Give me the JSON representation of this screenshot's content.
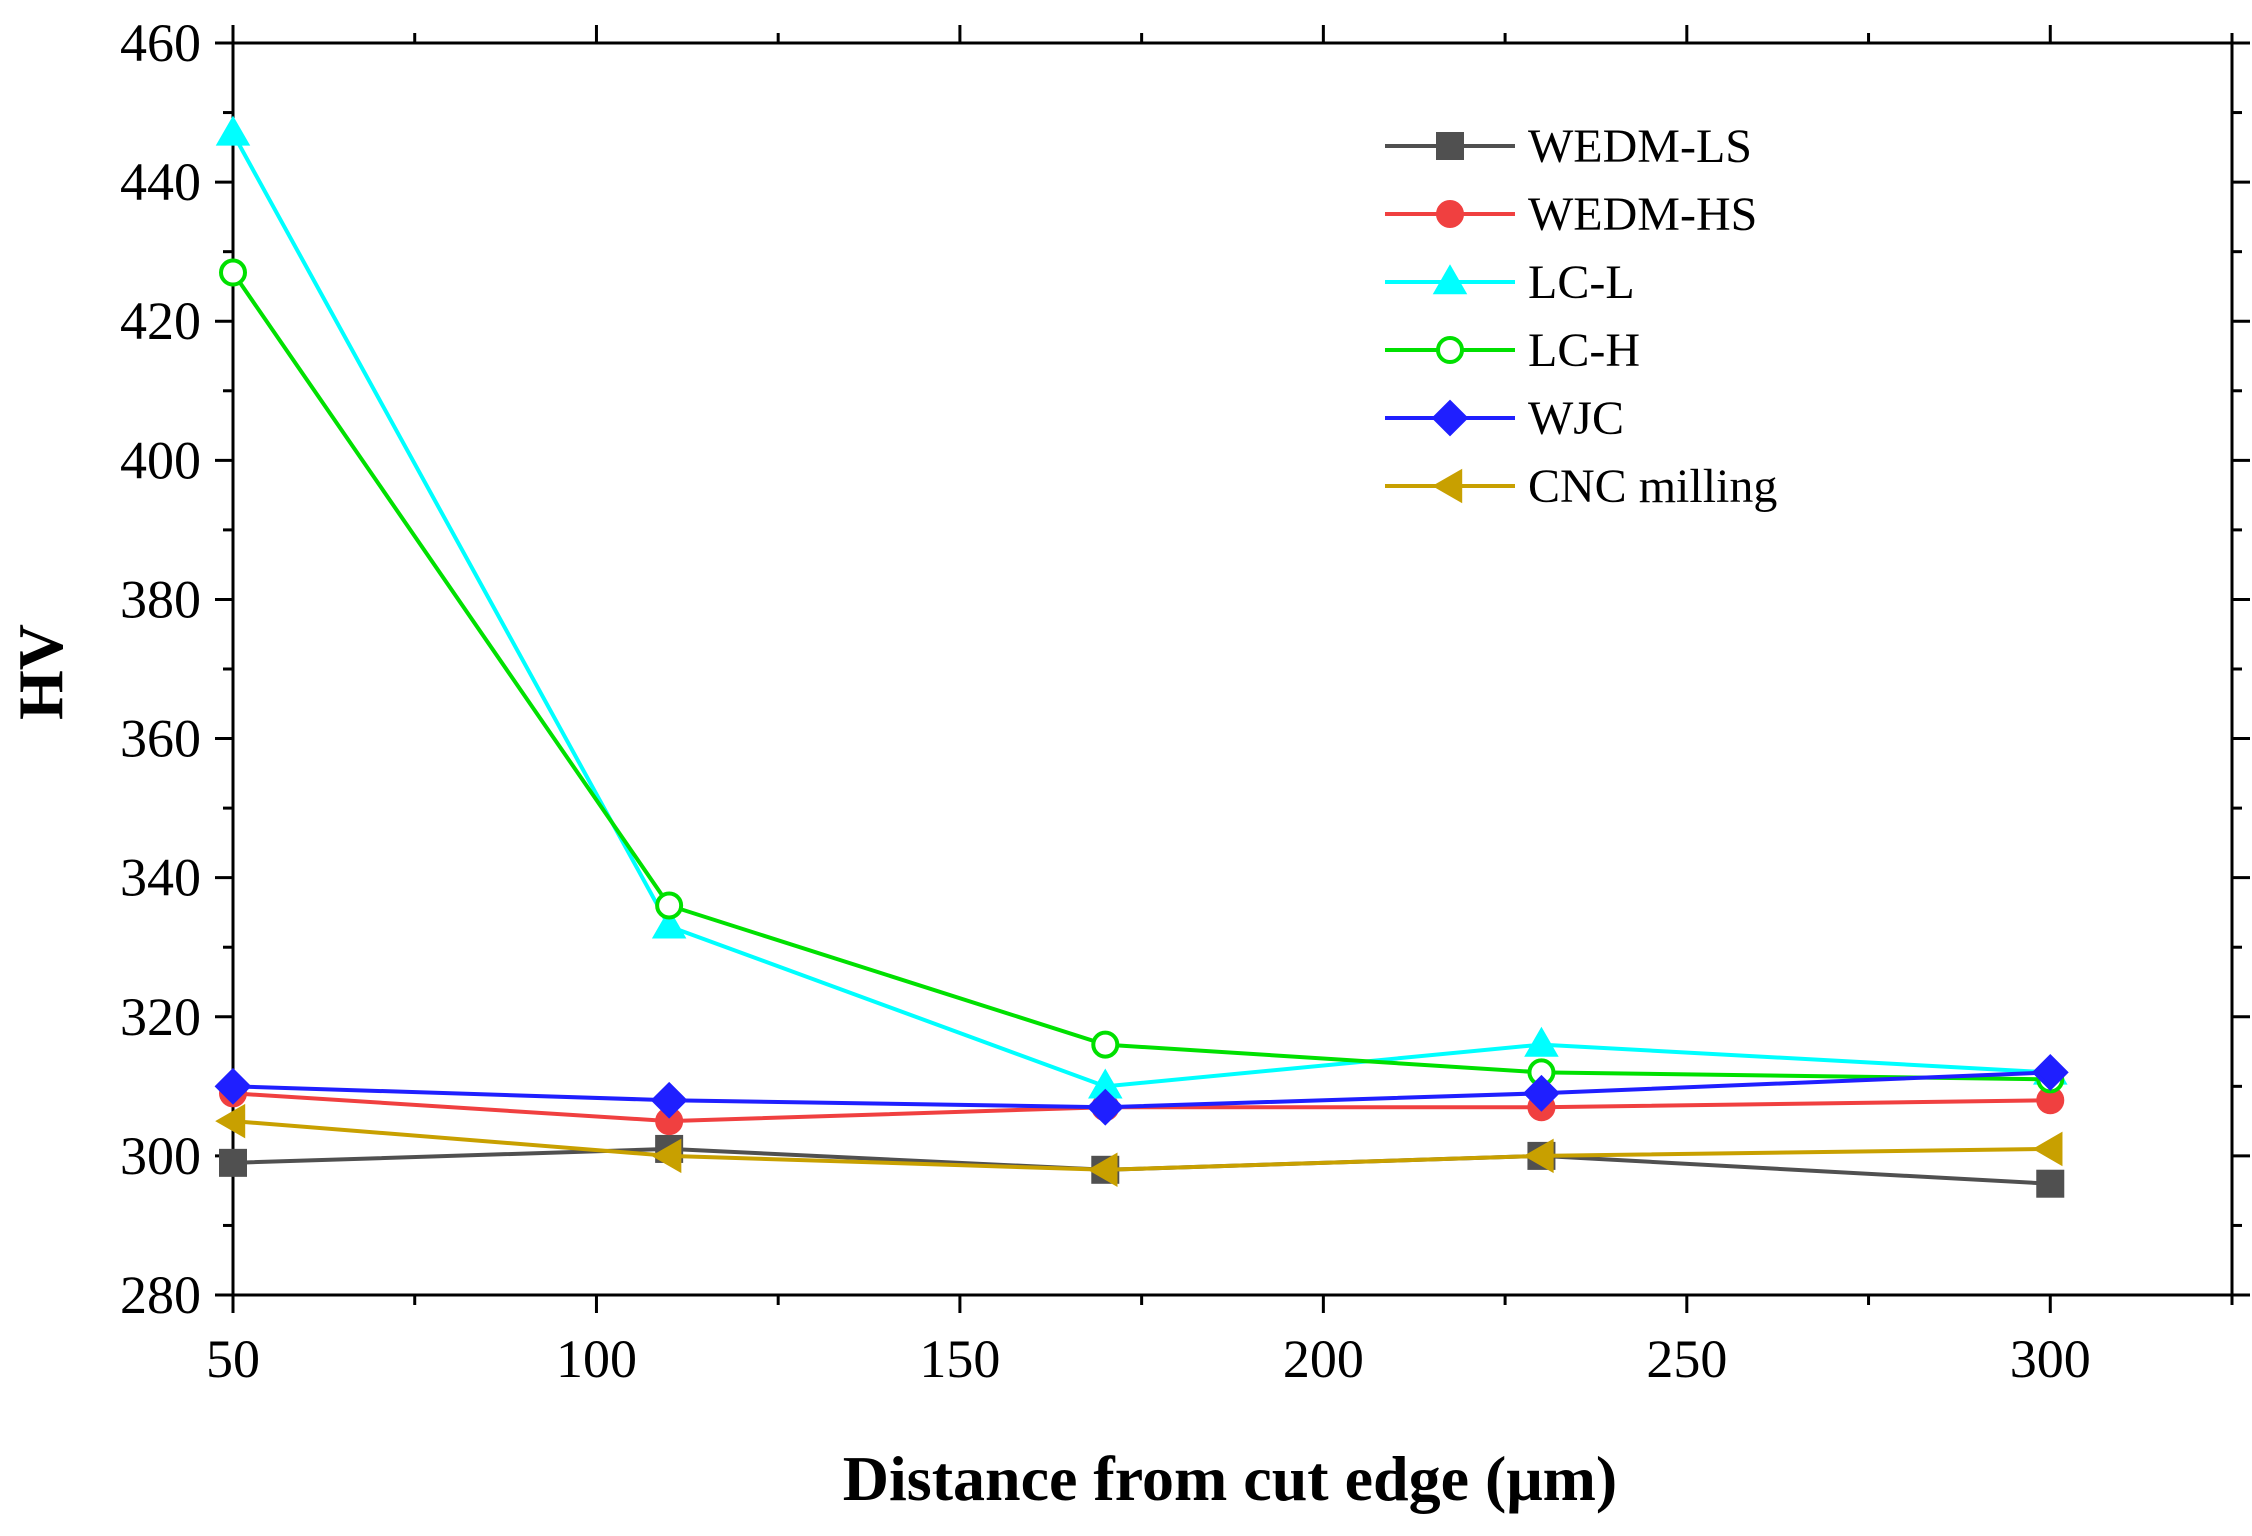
{
  "chart_data": {
    "type": "line",
    "title": "",
    "xlabel": "Distance from cut edge (μm)",
    "ylabel": "HV",
    "xlim": [
      50,
      325
    ],
    "ylim": [
      280,
      460
    ],
    "xticks": [
      50,
      100,
      150,
      200,
      250,
      300
    ],
    "yticks": [
      280,
      300,
      320,
      340,
      360,
      380,
      400,
      420,
      440,
      460
    ],
    "legend_position": "top-right",
    "x": [
      50,
      110,
      170,
      230,
      300
    ],
    "series": [
      {
        "name": "WEDM-LS",
        "color": "#505050",
        "marker": "square",
        "filled": true,
        "values": [
          299,
          301,
          298,
          300,
          296
        ]
      },
      {
        "name": "WEDM-HS",
        "color": "#f04040",
        "marker": "circle",
        "filled": true,
        "values": [
          309,
          305,
          307,
          307,
          308
        ]
      },
      {
        "name": "LC-L",
        "color": "#00ffff",
        "marker": "triangle-up",
        "filled": true,
        "values": [
          447,
          333,
          310,
          316,
          312
        ]
      },
      {
        "name": "LC-H",
        "color": "#00e000",
        "marker": "circle",
        "filled": false,
        "values": [
          427,
          336,
          316,
          312,
          311
        ]
      },
      {
        "name": "WJC",
        "color": "#1f1fff",
        "marker": "diamond",
        "filled": true,
        "values": [
          310,
          308,
          307,
          309,
          312
        ]
      },
      {
        "name": "CNC milling",
        "color": "#c8a000",
        "marker": "triangle-left",
        "filled": true,
        "values": [
          305,
          300,
          298,
          300,
          301
        ]
      }
    ]
  }
}
